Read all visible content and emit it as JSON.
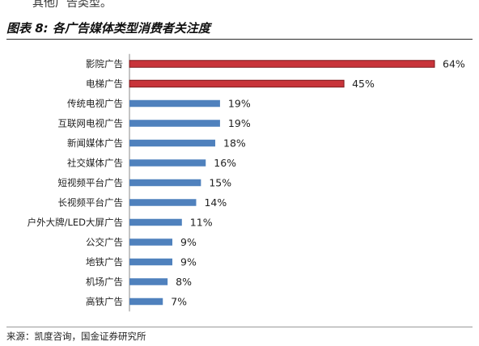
{
  "top_text": "其他广告类型。",
  "figure_title": "图表 8:  各广告媒体类型消费者关注度",
  "source": "来源：凯度咨询，国金证券研究所",
  "colors": {
    "highlight_fill": "#c8343a",
    "highlight_stroke": "#7a1a1d",
    "normal_fill": "#4f81bd"
  },
  "chart_data": {
    "type": "bar",
    "orientation": "horizontal",
    "title": "",
    "xlabel": "",
    "ylabel": "",
    "grid": false,
    "xlim": [
      0,
      64
    ],
    "categories": [
      "影院广告",
      "电梯广告",
      "传统电视广告",
      "互联网电视广告",
      "新闻媒体广告",
      "社交媒体广告",
      "短视频平台广告",
      "长视频平台广告",
      "户外大牌/LED大屏广告",
      "公交广告",
      "地铁广告",
      "机场广告",
      "高铁广告"
    ],
    "values": [
      64,
      45,
      19,
      19,
      18,
      16,
      15,
      14,
      11,
      9,
      9,
      8,
      7
    ],
    "value_labels": [
      "64%",
      "45%",
      "19%",
      "19%",
      "18%",
      "16%",
      "15%",
      "14%",
      "11%",
      "9%",
      "9%",
      "8%",
      "7%"
    ],
    "highlighted": [
      true,
      true,
      false,
      false,
      false,
      false,
      false,
      false,
      false,
      false,
      false,
      false,
      false
    ]
  }
}
